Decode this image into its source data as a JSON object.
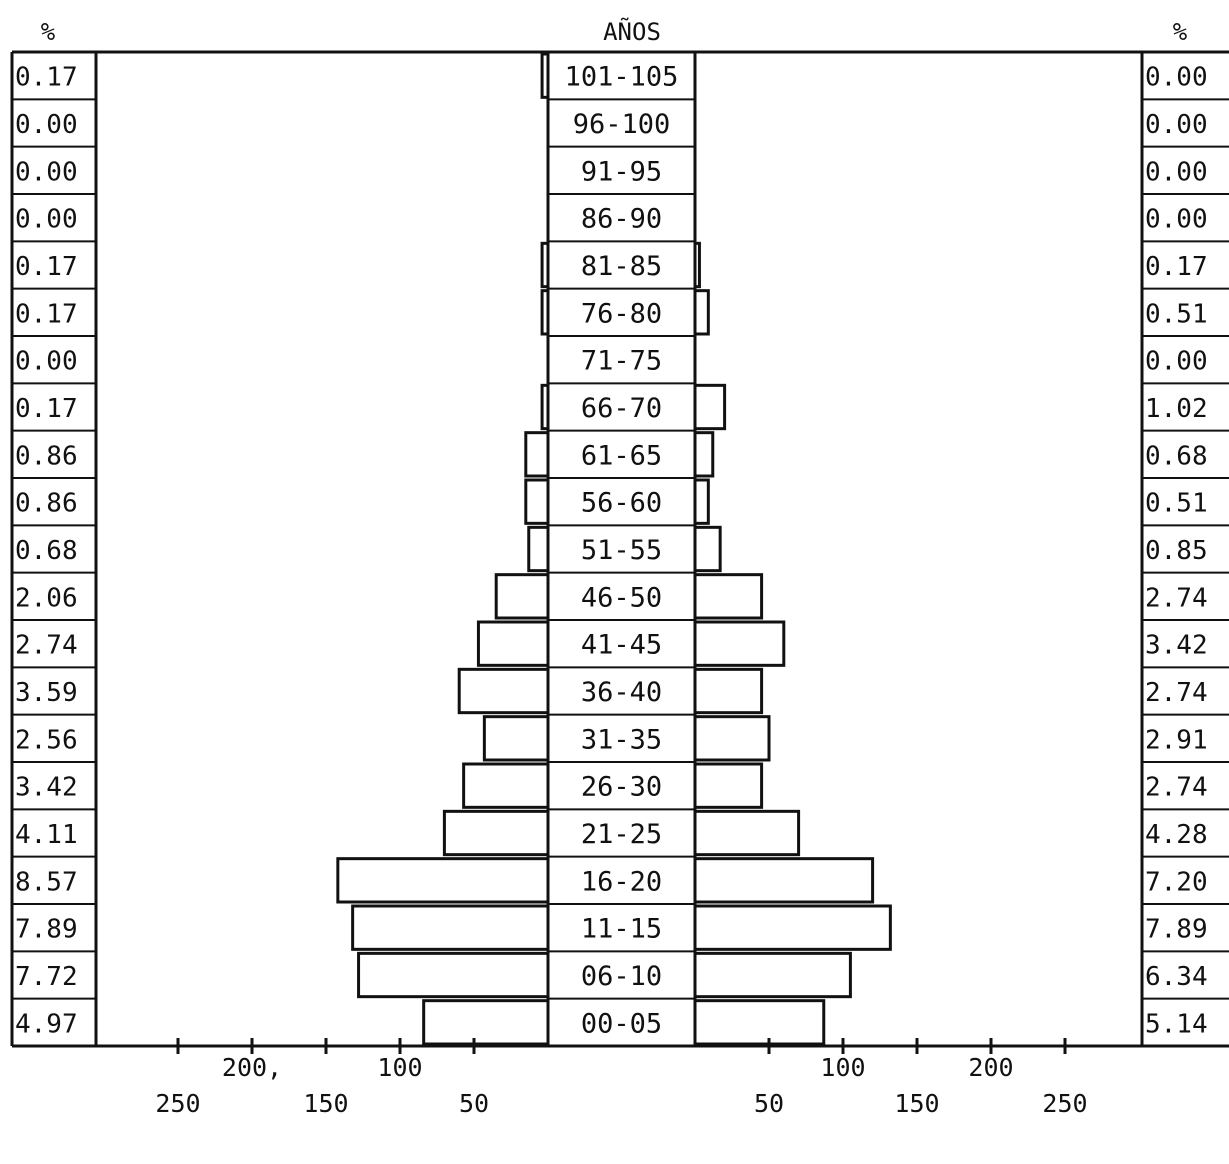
{
  "chart_data": {
    "type": "bar",
    "subtype": "population-pyramid",
    "title": "AÑOS",
    "left_percent_header": "%",
    "right_percent_header": "%",
    "categories": [
      "101-105",
      "96-100",
      "91-95",
      "86-90",
      "81-85",
      "76-80",
      "71-75",
      "66-70",
      "61-65",
      "56-60",
      "51-55",
      "46-50",
      "41-45",
      "36-40",
      "31-35",
      "26-30",
      "21-25",
      "16-20",
      "11-15",
      "06-10",
      "00-05"
    ],
    "left_percent_labels": [
      "0.17",
      "0.00",
      "0.00",
      "0.00",
      "0.17",
      "0.17",
      "0.00",
      "0.17",
      "0.86",
      "0.86",
      "0.68",
      "2.06",
      "2.74",
      "3.59",
      "2.56",
      "3.42",
      "4.11",
      "8.57",
      "7.89",
      "7.72",
      "4.97"
    ],
    "right_percent_labels": [
      "0.00",
      "0.00",
      "0.00",
      "0.00",
      "0.17",
      "0.51",
      "0.00",
      "1.02",
      "0.68",
      "0.51",
      "0.85",
      "2.74",
      "3.42",
      "2.74",
      "2.91",
      "2.74",
      "4.28",
      "7.20",
      "7.89",
      "6.34",
      "5.14"
    ],
    "series": [
      {
        "side": "left",
        "values": [
          4,
          0,
          0,
          0,
          4,
          4,
          0,
          4,
          15,
          15,
          13,
          35,
          47,
          60,
          43,
          57,
          70,
          142,
          132,
          128,
          84
        ]
      },
      {
        "side": "right",
        "values": [
          0,
          0,
          0,
          0,
          3,
          9,
          0,
          20,
          12,
          9,
          17,
          45,
          60,
          45,
          50,
          45,
          70,
          120,
          132,
          105,
          87
        ]
      }
    ],
    "axis": {
      "upper_tick_labels": [
        "200,",
        "100",
        "100",
        "200"
      ],
      "lower_tick_labels": [
        "250",
        "150",
        "50",
        "50",
        "150",
        "250"
      ],
      "xlim": [
        0,
        250
      ]
    }
  }
}
